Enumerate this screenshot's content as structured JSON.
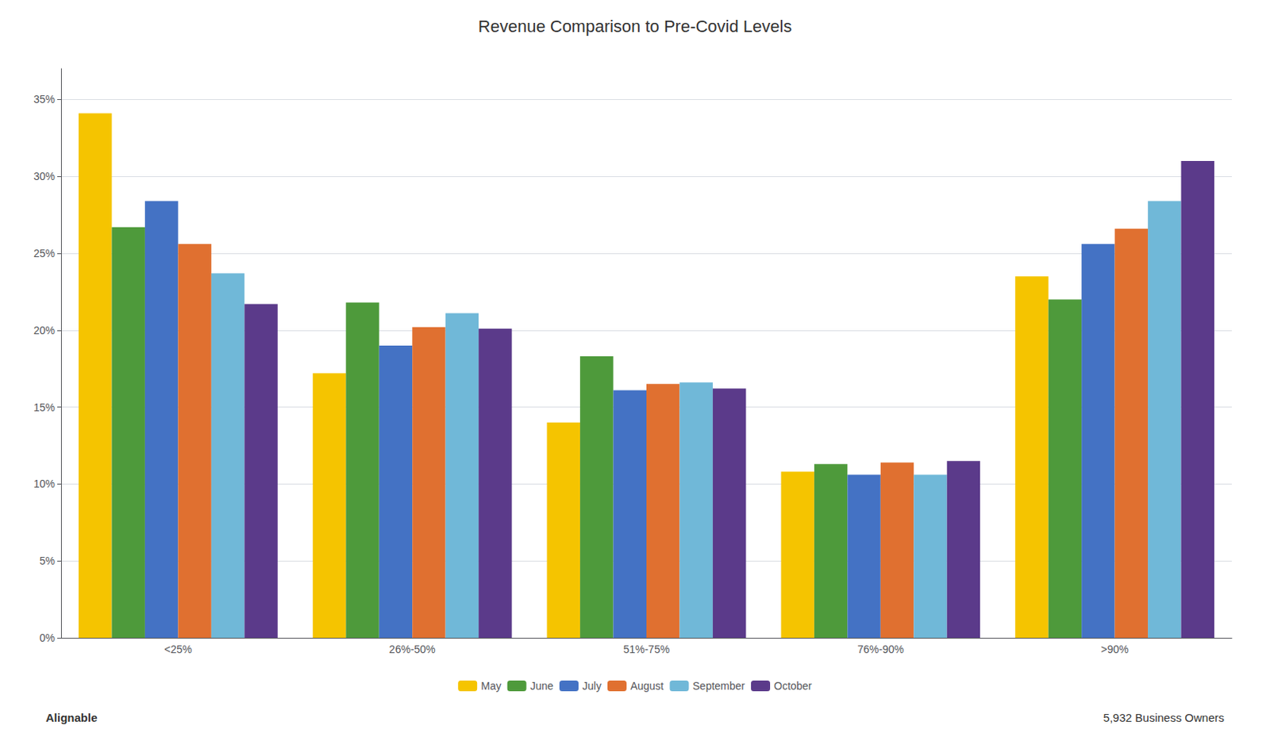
{
  "chart_data": {
    "type": "bar",
    "title": "Revenue Comparison to Pre-Covid Levels",
    "categories": [
      "<25%",
      "26%-50%",
      "51%-75%",
      "76%-90%",
      ">90%"
    ],
    "series": [
      {
        "name": "May",
        "color": "#F5C400",
        "values": [
          34.1,
          17.2,
          14.0,
          10.8,
          23.5
        ]
      },
      {
        "name": "June",
        "color": "#4E9A3B",
        "values": [
          26.7,
          21.8,
          18.3,
          11.3,
          22.0
        ]
      },
      {
        "name": "July",
        "color": "#4472C4",
        "values": [
          28.4,
          19.0,
          16.1,
          10.6,
          25.6
        ]
      },
      {
        "name": "August",
        "color": "#E07030",
        "values": [
          25.6,
          20.2,
          16.5,
          11.4,
          26.6
        ]
      },
      {
        "name": "September",
        "color": "#70B8D8",
        "values": [
          23.7,
          21.1,
          16.6,
          10.6,
          28.4
        ]
      },
      {
        "name": "October",
        "color": "#5B3A8A",
        "values": [
          21.7,
          20.1,
          16.2,
          11.5,
          31.0
        ]
      }
    ],
    "ylim": [
      0,
      37
    ],
    "yticks": [
      {
        "value": 0,
        "label": "0%"
      },
      {
        "value": 5,
        "label": "5%"
      },
      {
        "value": 10,
        "label": "10%"
      },
      {
        "value": 15,
        "label": "15%"
      },
      {
        "value": 20,
        "label": "20%"
      },
      {
        "value": 25,
        "label": "25%"
      },
      {
        "value": 30,
        "label": "30%"
      },
      {
        "value": 35,
        "label": "35%"
      }
    ],
    "grid": true,
    "legend": "bottom",
    "annotations": [
      "Alignable",
      "5,932 Business Owners"
    ]
  }
}
